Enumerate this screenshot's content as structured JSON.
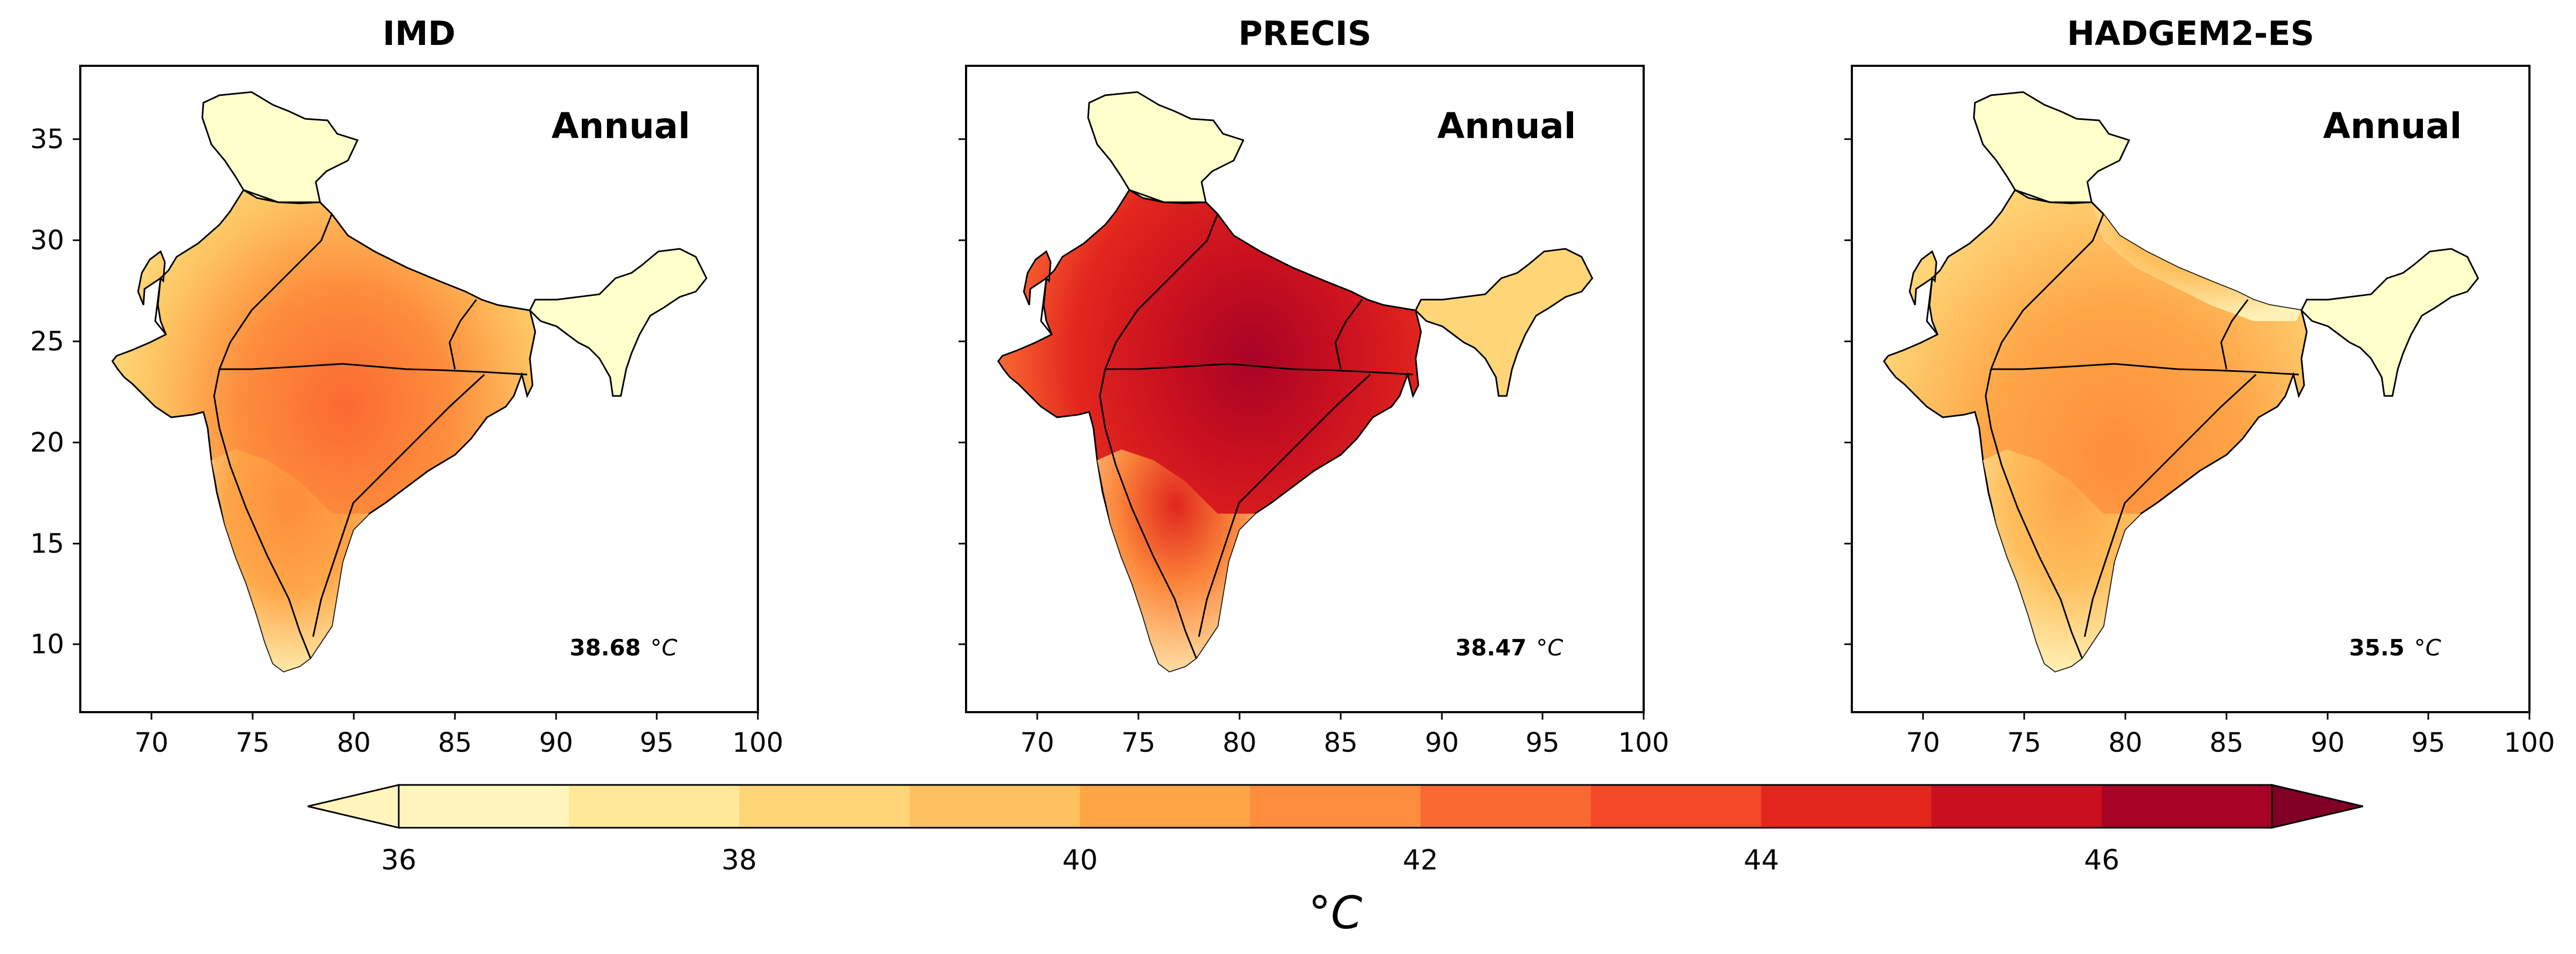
{
  "panels": [
    {
      "title": "IMD",
      "season": "Annual",
      "mean_value": "38.68",
      "mean_unit": "°C"
    },
    {
      "title": "PRECIS",
      "season": "Annual",
      "mean_value": "38.47",
      "mean_unit": "°C"
    },
    {
      "title": "HADGEM2-ES",
      "season": "Annual",
      "mean_value": "35.5",
      "mean_unit": "°C"
    }
  ],
  "axes": {
    "x_ticks": [
      "70",
      "75",
      "80",
      "85",
      "90",
      "95",
      "100"
    ],
    "y_ticks": [
      "35",
      "30",
      "25",
      "20",
      "15",
      "10"
    ],
    "x_range": [
      66.5,
      100
    ],
    "y_range": [
      6.5,
      38.5
    ]
  },
  "colorbar": {
    "label": "°C",
    "tick_labels": [
      "36",
      "38",
      "40",
      "42",
      "44",
      "46"
    ],
    "levels": [
      36,
      37,
      38,
      39,
      40,
      41,
      42,
      43,
      44,
      45,
      46,
      47
    ],
    "extend": "both",
    "colors": [
      "#fff5bd",
      "#ffe999",
      "#fed677",
      "#fec15f",
      "#fea546",
      "#fd8d3c",
      "#fb6932",
      "#f44a27",
      "#e2261e",
      "#c9101f",
      "#a80326",
      "#800026"
    ]
  },
  "land_color": "#ffffcc"
}
